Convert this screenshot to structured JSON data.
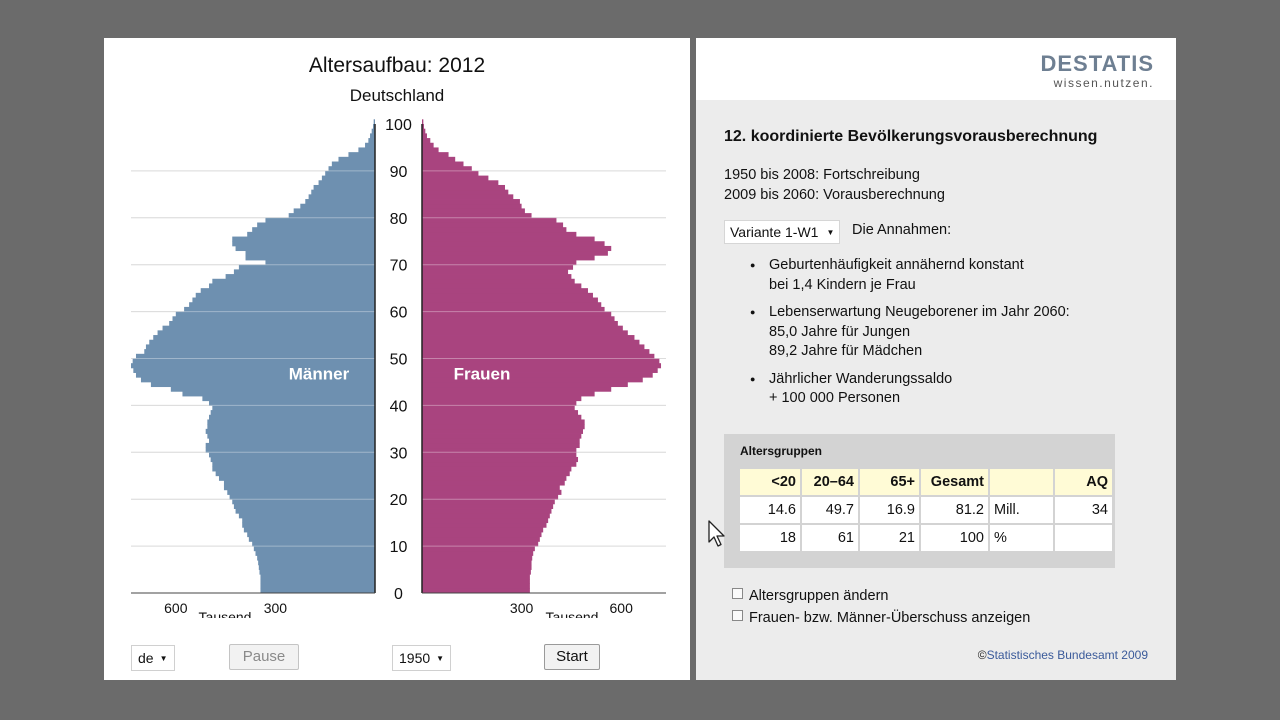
{
  "chart": {
    "title": "Altersaufbau: 2012",
    "subtitle": "Deutschland",
    "label_men": "Männer",
    "label_women": "Frauen",
    "unit_label": "Tausend"
  },
  "controls": {
    "language": "de",
    "pause_label": "Pause",
    "year_select": "1950",
    "start_label": "Start"
  },
  "logo": {
    "main": "DESTATIS",
    "tagline": "wissen.nutzen."
  },
  "info": {
    "heading": "12. koordinierte Bevölkerungsvorausberechnung",
    "period1": "1950 bis 2008: Fortschreibung",
    "period2": "2009 bis 2060: Vorausberechnung",
    "variant": "Variante 1-W1",
    "assumptions_label": "Die Annahmen:",
    "bullets": [
      {
        "lines": [
          "Geburtenhäufigkeit annähernd konstant",
          "bei 1,4 Kindern je Frau"
        ]
      },
      {
        "lines": [
          "Lebenserwartung Neugeborener im Jahr 2060:",
          "85,0 Jahre für Jungen",
          "89,2 Jahre für Mädchen"
        ]
      },
      {
        "lines": [
          "Jährlicher Wanderungssaldo",
          "+ 100 000 Personen"
        ]
      }
    ]
  },
  "age_groups": {
    "title": "Altersgruppen",
    "headers": [
      "<20",
      "20–64",
      "65+",
      "Gesamt",
      "",
      "AQ"
    ],
    "rows": [
      [
        "14.6",
        "49.7",
        "16.9",
        "81.2",
        "Mill.",
        "34"
      ],
      [
        "18",
        "61",
        "21",
        "100",
        "%",
        ""
      ]
    ]
  },
  "options": {
    "change_groups": "Altersgruppen ändern",
    "show_surplus": "Frauen- bzw. Männer-Überschuss anzeigen"
  },
  "copyright": {
    "symbol": "©",
    "text": "Statistisches Bundesamt 2009"
  },
  "chart_data": {
    "type": "population-pyramid",
    "title": "Altersaufbau: 2012",
    "subtitle": "Deutschland",
    "xlabel": "Tausend",
    "x_ticks": [
      600,
      300
    ],
    "xlim": [
      0,
      735
    ],
    "y_ticks": [
      0,
      10,
      20,
      30,
      40,
      50,
      60,
      70,
      80,
      90,
      100
    ],
    "ylim": [
      0,
      100
    ],
    "ages": [
      0,
      1,
      2,
      3,
      4,
      5,
      6,
      7,
      8,
      9,
      10,
      11,
      12,
      13,
      14,
      15,
      16,
      17,
      18,
      19,
      20,
      21,
      22,
      23,
      24,
      25,
      26,
      27,
      28,
      29,
      30,
      31,
      32,
      33,
      34,
      35,
      36,
      37,
      38,
      39,
      40,
      41,
      42,
      43,
      44,
      45,
      46,
      47,
      48,
      49,
      50,
      51,
      52,
      53,
      54,
      55,
      56,
      57,
      58,
      59,
      60,
      61,
      62,
      63,
      64,
      65,
      66,
      67,
      68,
      69,
      70,
      71,
      72,
      73,
      74,
      75,
      76,
      77,
      78,
      79,
      80,
      81,
      82,
      83,
      84,
      85,
      86,
      87,
      88,
      89,
      90,
      91,
      92,
      93,
      94,
      95,
      96,
      97,
      98,
      99,
      100
    ],
    "colors": {
      "men": "#6e90b0",
      "women": "#a9447f"
    },
    "series": [
      {
        "name": "Männer",
        "values": [
          345,
          345,
          345,
          345,
          348,
          350,
          352,
          355,
          360,
          365,
          370,
          380,
          385,
          395,
          400,
          400,
          410,
          420,
          425,
          430,
          438,
          445,
          455,
          455,
          470,
          480,
          490,
          490,
          495,
          500,
          510,
          510,
          500,
          505,
          510,
          505,
          505,
          500,
          495,
          490,
          500,
          520,
          580,
          615,
          675,
          705,
          720,
          728,
          735,
          730,
          720,
          695,
          690,
          680,
          668,
          655,
          640,
          620,
          610,
          600,
          575,
          560,
          550,
          540,
          525,
          500,
          490,
          450,
          425,
          410,
          330,
          390,
          390,
          420,
          430,
          430,
          385,
          370,
          355,
          330,
          260,
          245,
          225,
          210,
          200,
          192,
          185,
          170,
          160,
          150,
          140,
          130,
          110,
          80,
          50,
          30,
          20,
          15,
          10,
          6,
          4
        ]
      },
      {
        "name": "Frauen",
        "values": [
          325,
          325,
          325,
          325,
          328,
          330,
          330,
          332,
          335,
          340,
          350,
          355,
          360,
          365,
          375,
          380,
          385,
          390,
          395,
          400,
          410,
          420,
          415,
          430,
          435,
          445,
          450,
          465,
          470,
          465,
          465,
          475,
          475,
          480,
          485,
          490,
          490,
          480,
          470,
          460,
          465,
          480,
          520,
          570,
          620,
          665,
          695,
          710,
          720,
          715,
          700,
          685,
          670,
          655,
          640,
          620,
          605,
          590,
          580,
          570,
          550,
          540,
          530,
          515,
          500,
          480,
          460,
          450,
          440,
          455,
          465,
          520,
          560,
          570,
          550,
          520,
          465,
          435,
          425,
          405,
          330,
          310,
          300,
          295,
          275,
          260,
          250,
          230,
          200,
          170,
          150,
          125,
          100,
          80,
          50,
          35,
          25,
          15,
          10,
          6,
          4
        ]
      }
    ]
  }
}
